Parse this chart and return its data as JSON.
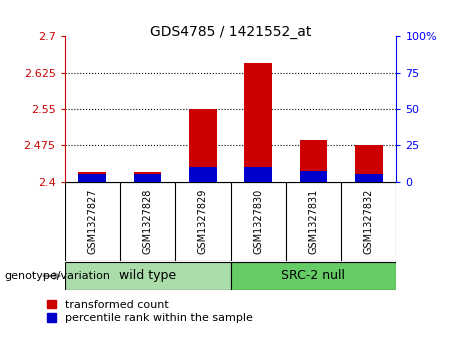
{
  "title": "GDS4785 / 1421552_at",
  "samples": [
    "GSM1327827",
    "GSM1327828",
    "GSM1327829",
    "GSM1327830",
    "GSM1327831",
    "GSM1327832"
  ],
  "transformed_counts": [
    2.42,
    2.42,
    2.55,
    2.645,
    2.485,
    2.475
  ],
  "percentile_ranks": [
    5,
    5,
    10,
    10,
    7,
    5
  ],
  "ymin": 2.4,
  "ymax": 2.7,
  "yticks": [
    2.4,
    2.475,
    2.55,
    2.625,
    2.7
  ],
  "ytick_labels": [
    "2.4",
    "2.475",
    "2.55",
    "2.625",
    "2.7"
  ],
  "y2ticks": [
    0,
    25,
    50,
    75,
    100
  ],
  "y2tick_labels": [
    "0",
    "25",
    "50",
    "75",
    "100%"
  ],
  "bar_color_red": "#cc0000",
  "bar_color_blue": "#0000cc",
  "bar_width": 0.5,
  "legend_label_red": "transformed count",
  "legend_label_blue": "percentile rank within the sample",
  "genotype_label": "genotype/variation",
  "title_fontsize": 10,
  "tick_fontsize": 8,
  "legend_fontsize": 8,
  "group_label_fontsize": 9,
  "genotype_fontsize": 8,
  "sample_fontsize": 7,
  "background_color": "#ffffff",
  "plot_bg_color": "#ffffff",
  "tick_area_bg": "#c8c8c8",
  "wild_type_color": "#aaddaa",
  "src2_null_color": "#66cc66"
}
